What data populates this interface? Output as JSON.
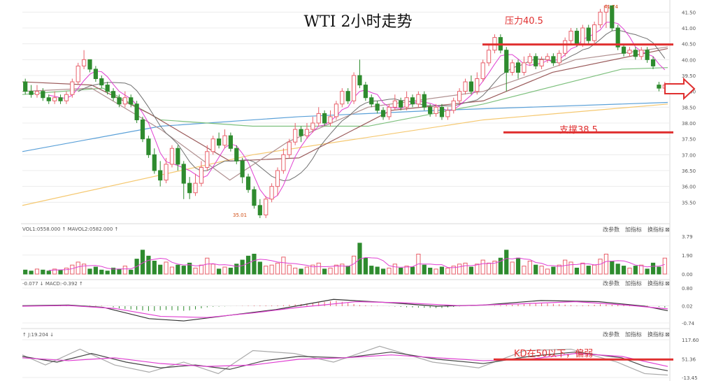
{
  "chart_data": {
    "type": "candlestick",
    "title": "WTI 2小时走势",
    "colors": {
      "up": "#e8606a",
      "down": "#2e8b2e",
      "resist": "#e03030",
      "ma5": "#e03fd2",
      "ma10": "#707070",
      "ma20": "#b09090",
      "ma30": "#9a5a5a",
      "ma60": "#7dc07d",
      "ma120": "#5aa0d8",
      "ma250": "#f5c870",
      "macd_line": "#333333",
      "signal_line": "#e03fd2",
      "k_line": "#444444",
      "d_line": "#e03fd2",
      "j_line": "#aaaaaa",
      "vol_ma": "#e03fd2"
    },
    "price_axis": {
      "ylim": [
        35.0,
        41.75
      ],
      "ticks": [
        "41.50",
        "41.00",
        "40.50",
        "40.00",
        "39.50",
        "39.00",
        "38.50",
        "38.00",
        "37.50",
        "37.00",
        "36.50",
        "36.00",
        "35.50"
      ]
    },
    "annotations": {
      "resistance": {
        "label": "压力40.5",
        "value": 40.5
      },
      "support": {
        "label": "支撑38.5",
        "value": 38.5
      },
      "high_label": "41.74",
      "low_label": "35.01",
      "kd_note": "KD在50以下，偏弱"
    },
    "candles": [
      [
        39.3,
        39.0,
        39.4,
        38.9
      ],
      [
        39.0,
        38.9,
        39.2,
        38.8
      ],
      [
        38.9,
        39.0,
        39.2,
        38.8
      ],
      [
        39.0,
        38.8,
        39.1,
        38.7
      ],
      [
        38.8,
        38.7,
        38.9,
        38.6
      ],
      [
        38.7,
        38.8,
        39.0,
        38.6
      ],
      [
        38.8,
        38.7,
        38.9,
        38.6
      ],
      [
        38.7,
        38.9,
        39.0,
        38.6
      ],
      [
        38.9,
        39.3,
        39.4,
        38.8
      ],
      [
        39.3,
        39.8,
        39.9,
        39.2
      ],
      [
        39.8,
        40.0,
        40.3,
        39.7
      ],
      [
        40.0,
        39.7,
        40.0,
        39.6
      ],
      [
        39.7,
        39.4,
        39.8,
        39.3
      ],
      [
        39.4,
        39.2,
        39.5,
        39.1
      ],
      [
        39.2,
        39.0,
        39.3,
        38.9
      ],
      [
        39.0,
        38.8,
        39.1,
        38.7
      ],
      [
        38.8,
        38.6,
        38.9,
        38.5
      ],
      [
        38.6,
        38.8,
        39.0,
        38.5
      ],
      [
        38.8,
        38.6,
        38.9,
        38.5
      ],
      [
        38.6,
        38.1,
        38.7,
        38.0
      ],
      [
        38.1,
        37.5,
        38.2,
        37.4
      ],
      [
        37.5,
        37.0,
        37.6,
        36.9
      ],
      [
        37.0,
        36.5,
        37.2,
        36.4
      ],
      [
        36.5,
        36.2,
        36.8,
        36.0
      ],
      [
        36.2,
        36.7,
        36.9,
        36.1
      ],
      [
        36.7,
        37.2,
        37.3,
        36.6
      ],
      [
        37.2,
        36.7,
        37.3,
        36.5
      ],
      [
        36.7,
        36.1,
        36.8,
        35.6
      ],
      [
        36.1,
        35.8,
        36.3,
        35.6
      ],
      [
        35.8,
        36.1,
        36.4,
        35.7
      ],
      [
        36.1,
        36.6,
        36.8,
        36.0
      ],
      [
        36.6,
        37.1,
        37.3,
        36.5
      ],
      [
        37.1,
        37.5,
        37.6,
        37.0
      ],
      [
        37.5,
        37.3,
        37.7,
        37.2
      ],
      [
        37.3,
        37.6,
        37.8,
        37.2
      ],
      [
        37.6,
        37.2,
        37.7,
        37.1
      ],
      [
        37.2,
        36.8,
        37.3,
        36.7
      ],
      [
        36.8,
        36.3,
        36.9,
        36.1
      ],
      [
        36.3,
        35.9,
        36.4,
        35.8
      ],
      [
        35.9,
        35.4,
        36.0,
        35.3
      ],
      [
        35.4,
        35.1,
        35.6,
        35.0
      ],
      [
        35.1,
        35.6,
        35.7,
        35.0
      ],
      [
        35.6,
        36.0,
        36.1,
        35.5
      ],
      [
        36.0,
        36.5,
        36.6,
        35.7
      ],
      [
        36.5,
        37.0,
        37.2,
        36.4
      ],
      [
        37.0,
        37.4,
        37.5,
        36.9
      ],
      [
        37.4,
        37.8,
        38.0,
        37.3
      ],
      [
        37.8,
        37.6,
        37.9,
        37.4
      ],
      [
        37.6,
        37.8,
        38.0,
        37.5
      ],
      [
        37.8,
        38.0,
        38.2,
        37.7
      ],
      [
        38.0,
        38.3,
        38.5,
        37.9
      ],
      [
        38.3,
        38.0,
        38.4,
        37.9
      ],
      [
        38.0,
        38.2,
        38.4,
        37.9
      ],
      [
        38.2,
        38.6,
        38.7,
        38.1
      ],
      [
        38.6,
        39.0,
        39.1,
        38.5
      ],
      [
        39.0,
        38.7,
        39.1,
        38.6
      ],
      [
        38.7,
        39.5,
        39.6,
        38.6
      ],
      [
        39.5,
        39.2,
        40.0,
        39.1
      ],
      [
        39.2,
        38.8,
        39.3,
        38.7
      ],
      [
        38.8,
        38.6,
        38.9,
        38.5
      ],
      [
        38.6,
        38.4,
        38.7,
        38.3
      ],
      [
        38.4,
        38.2,
        38.5,
        38.1
      ],
      [
        38.2,
        38.5,
        38.6,
        38.1
      ],
      [
        38.5,
        38.7,
        38.9,
        38.4
      ],
      [
        38.7,
        38.5,
        38.8,
        38.4
      ],
      [
        38.5,
        38.8,
        39.0,
        38.4
      ],
      [
        38.8,
        38.6,
        38.9,
        38.5
      ],
      [
        38.6,
        38.9,
        39.0,
        38.5
      ],
      [
        38.9,
        38.5,
        39.0,
        38.4
      ],
      [
        38.5,
        38.3,
        38.6,
        38.2
      ],
      [
        38.3,
        38.5,
        38.6,
        38.2
      ],
      [
        38.5,
        38.2,
        38.6,
        38.1
      ],
      [
        38.2,
        38.4,
        38.5,
        38.1
      ],
      [
        38.4,
        38.7,
        38.8,
        38.3
      ],
      [
        38.7,
        39.0,
        39.1,
        38.6
      ],
      [
        39.0,
        39.3,
        39.4,
        38.9
      ],
      [
        39.3,
        39.0,
        39.5,
        38.9
      ],
      [
        39.0,
        39.4,
        39.6,
        38.9
      ],
      [
        39.4,
        39.9,
        40.0,
        39.3
      ],
      [
        39.9,
        40.3,
        40.5,
        39.8
      ],
      [
        40.3,
        40.7,
        40.8,
        40.2
      ],
      [
        40.7,
        40.3,
        40.8,
        40.2
      ],
      [
        40.3,
        39.6,
        40.4,
        39.0
      ],
      [
        39.6,
        39.9,
        40.0,
        39.5
      ],
      [
        39.9,
        39.6,
        40.0,
        39.4
      ],
      [
        39.6,
        39.9,
        40.1,
        39.5
      ],
      [
        39.9,
        40.1,
        40.2,
        39.8
      ],
      [
        40.1,
        39.8,
        40.2,
        39.7
      ],
      [
        39.8,
        40.0,
        40.1,
        39.7
      ],
      [
        40.0,
        40.1,
        40.2,
        39.9
      ],
      [
        40.1,
        39.9,
        40.2,
        39.8
      ],
      [
        39.9,
        40.2,
        40.3,
        39.8
      ],
      [
        40.2,
        40.6,
        40.7,
        40.1
      ],
      [
        40.6,
        40.9,
        41.0,
        40.5
      ],
      [
        40.9,
        40.5,
        41.0,
        40.4
      ],
      [
        40.5,
        41.0,
        41.1,
        40.4
      ],
      [
        41.0,
        40.6,
        41.1,
        40.5
      ],
      [
        40.6,
        41.1,
        41.2,
        40.5
      ],
      [
        41.1,
        41.5,
        41.6,
        41.0
      ],
      [
        41.5,
        41.7,
        41.74,
        41.0
      ],
      [
        41.7,
        41.0,
        41.7,
        40.9
      ],
      [
        41.0,
        40.4,
        41.1,
        40.3
      ],
      [
        40.4,
        40.2,
        40.5,
        40.1
      ],
      [
        40.2,
        40.3,
        40.4,
        40.1
      ],
      [
        40.3,
        40.1,
        40.4,
        40.0
      ],
      [
        40.1,
        40.3,
        40.4,
        40.0
      ],
      [
        40.3,
        40.0,
        40.4,
        39.9
      ],
      [
        40.0,
        39.8,
        40.1,
        39.7
      ],
      [
        39.2,
        39.1,
        39.3,
        39.0
      ],
      [
        39.1,
        39.2,
        39.3,
        39.0
      ]
    ],
    "ma_lines": [
      {
        "key": "ma250",
        "color_key": "ma250",
        "points": [
          [
            0,
            35.4
          ],
          [
            100,
            37.0
          ],
          [
            200,
            38.1
          ],
          [
            280,
            38.6
          ]
        ],
        "start": 44
      },
      {
        "key": "ma120",
        "color_key": "ma120",
        "points": [
          [
            0,
            37.1
          ],
          [
            60,
            37.9
          ],
          [
            120,
            38.2
          ],
          [
            180,
            38.4
          ],
          [
            280,
            38.65
          ]
        ],
        "start": 0
      },
      {
        "key": "ma60",
        "color_key": "ma60",
        "points": [
          [
            0,
            38.9
          ],
          [
            35,
            39.1
          ],
          [
            60,
            38.1
          ],
          [
            100,
            37.9
          ],
          [
            150,
            37.9
          ],
          [
            200,
            38.6
          ],
          [
            260,
            39.7
          ],
          [
            280,
            39.75
          ]
        ],
        "start": 0
      },
      {
        "key": "ma30",
        "color_key": "ma30",
        "points": [
          [
            0,
            39.3
          ],
          [
            30,
            39.2
          ],
          [
            55,
            38.3
          ],
          [
            90,
            36.8
          ],
          [
            120,
            36.9
          ],
          [
            160,
            38.4
          ],
          [
            200,
            38.7
          ],
          [
            230,
            39.6
          ],
          [
            280,
            40.35
          ]
        ],
        "start": 0
      },
      {
        "key": "ma20",
        "color_key": "ma20",
        "points": [
          [
            0,
            39.0
          ],
          [
            30,
            39.1
          ],
          [
            60,
            37.8
          ],
          [
            90,
            36.2
          ],
          [
            115,
            37.4
          ],
          [
            150,
            38.5
          ],
          [
            200,
            39.0
          ],
          [
            240,
            40.0
          ],
          [
            280,
            40.4
          ]
        ],
        "start": 0
      }
    ],
    "volume_axis": {
      "ticks": [
        "3.79",
        "1.90",
        "0.00"
      ],
      "max": 3.79
    },
    "volume_label": "VOL1:0558.000 ↑ MAVOL2:0582.000 ↑",
    "volume": [
      0.4,
      0.3,
      0.5,
      0.4,
      0.3,
      0.5,
      0.4,
      0.6,
      0.9,
      1.2,
      1.0,
      0.5,
      0.7,
      0.4,
      0.3,
      0.6,
      0.5,
      0.8,
      0.4,
      1.5,
      2.4,
      1.8,
      1.3,
      0.9,
      1.2,
      0.7,
      0.9,
      0.8,
      1.1,
      0.6,
      0.9,
      1.6,
      1.0,
      0.5,
      0.7,
      0.6,
      1.0,
      1.4,
      1.8,
      2.0,
      1.2,
      0.8,
      0.9,
      1.1,
      1.7,
      0.9,
      0.6,
      0.5,
      0.7,
      0.9,
      1.1,
      0.5,
      0.6,
      0.9,
      1.0,
      0.8,
      1.8,
      3.1,
      1.6,
      0.8,
      0.7,
      0.5,
      0.6,
      1.0,
      0.6,
      0.8,
      0.7,
      2.0,
      0.9,
      0.6,
      0.5,
      0.7,
      0.6,
      0.8,
      1.0,
      1.1,
      0.7,
      1.0,
      1.4,
      1.1,
      1.3,
      1.6,
      2.4,
      1.2,
      1.6,
      0.8,
      1.3,
      0.9,
      0.8,
      0.5,
      0.7,
      0.9,
      1.4,
      1.2,
      0.6,
      1.1,
      0.8,
      0.9,
      1.5,
      2.0,
      1.3,
      1.0,
      0.8,
      0.6,
      0.8,
      0.9,
      0.5,
      1.1,
      0.7,
      1.6
    ],
    "macd_axis": {
      "ticks": [
        "0.80",
        "0.02",
        "-0.74"
      ],
      "max": 0.8,
      "min": -0.74
    },
    "macd_label": "-0.077 ↓ MACD:-0.392 ↑",
    "macd_line": [
      [
        0,
        0.02
      ],
      [
        20,
        0.05
      ],
      [
        35,
        -0.05
      ],
      [
        55,
        -0.55
      ],
      [
        70,
        -0.65
      ],
      [
        90,
        -0.4
      ],
      [
        110,
        -0.15
      ],
      [
        135,
        0.3
      ],
      [
        160,
        0.15
      ],
      [
        180,
        0.0
      ],
      [
        200,
        0.05
      ],
      [
        225,
        0.25
      ],
      [
        250,
        0.2
      ],
      [
        270,
        0.0
      ],
      [
        280,
        -0.2
      ]
    ],
    "signal_line": [
      [
        0,
        0.0
      ],
      [
        20,
        0.03
      ],
      [
        40,
        -0.1
      ],
      [
        60,
        -0.45
      ],
      [
        80,
        -0.5
      ],
      [
        100,
        -0.3
      ],
      [
        120,
        -0.05
      ],
      [
        145,
        0.2
      ],
      [
        165,
        0.15
      ],
      [
        190,
        0.02
      ],
      [
        215,
        0.1
      ],
      [
        240,
        0.2
      ],
      [
        262,
        0.05
      ],
      [
        280,
        -0.12
      ]
    ],
    "kd_axis": {
      "ticks": [
        "117.60",
        "51.36",
        "-13.45"
      ],
      "max": 117.6,
      "min": -13.45
    },
    "kd_label": "↑ J:19.204 ↓",
    "k_line": [
      [
        0,
        60
      ],
      [
        15,
        40
      ],
      [
        30,
        70
      ],
      [
        45,
        40
      ],
      [
        60,
        20
      ],
      [
        75,
        30
      ],
      [
        90,
        15
      ],
      [
        105,
        45
      ],
      [
        120,
        60
      ],
      [
        140,
        55
      ],
      [
        160,
        75
      ],
      [
        180,
        50
      ],
      [
        200,
        35
      ],
      [
        220,
        60
      ],
      [
        240,
        75
      ],
      [
        260,
        55
      ],
      [
        270,
        25
      ],
      [
        280,
        10
      ]
    ],
    "d_line": [
      [
        0,
        55
      ],
      [
        20,
        45
      ],
      [
        40,
        55
      ],
      [
        60,
        35
      ],
      [
        80,
        25
      ],
      [
        100,
        30
      ],
      [
        120,
        50
      ],
      [
        140,
        55
      ],
      [
        160,
        65
      ],
      [
        180,
        55
      ],
      [
        200,
        45
      ],
      [
        220,
        50
      ],
      [
        240,
        70
      ],
      [
        260,
        60
      ],
      [
        280,
        25
      ]
    ],
    "j_line": [
      [
        0,
        65
      ],
      [
        10,
        30
      ],
      [
        25,
        85
      ],
      [
        40,
        30
      ],
      [
        55,
        5
      ],
      [
        70,
        40
      ],
      [
        85,
        0
      ],
      [
        100,
        80
      ],
      [
        118,
        70
      ],
      [
        135,
        40
      ],
      [
        155,
        95
      ],
      [
        178,
        40
      ],
      [
        198,
        20
      ],
      [
        218,
        80
      ],
      [
        238,
        85
      ],
      [
        258,
        40
      ],
      [
        270,
        0
      ],
      [
        280,
        -5
      ]
    ],
    "tool_buttons": [
      "改参数",
      "加指标",
      "换指标",
      "⊠"
    ]
  }
}
